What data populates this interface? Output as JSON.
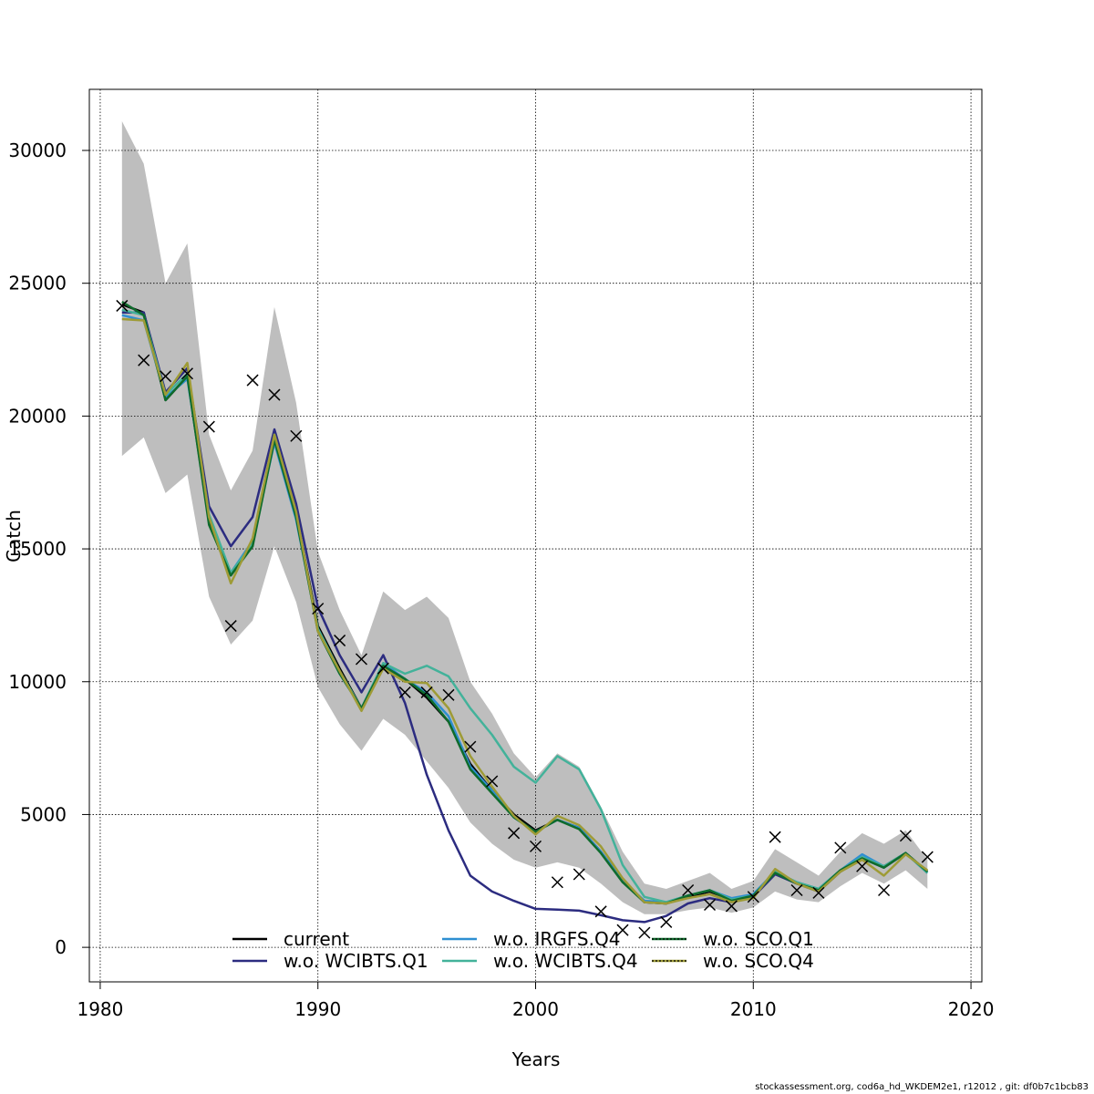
{
  "chart_data": {
    "type": "line",
    "title": "",
    "xlabel": "Years",
    "ylabel": "Catch",
    "xlim": [
      1979.5,
      2020.5
    ],
    "ylim": [
      -1300,
      32300
    ],
    "x_ticks": [
      1980,
      1990,
      2000,
      2010,
      2020
    ],
    "y_ticks": [
      0,
      5000,
      10000,
      15000,
      20000,
      25000,
      30000
    ],
    "grid": true,
    "years": [
      1981,
      1982,
      1983,
      1984,
      1985,
      1986,
      1987,
      1988,
      1989,
      1990,
      1991,
      1992,
      1993,
      1994,
      1995,
      1996,
      1997,
      1998,
      1999,
      2000,
      2001,
      2002,
      2003,
      2004,
      2005,
      2006,
      2007,
      2008,
      2009,
      2010,
      2011,
      2012,
      2013,
      2014,
      2015,
      2016,
      2017,
      2018
    ],
    "ci_band": {
      "color": "#bebebe",
      "upper": [
        31100,
        29500,
        25000,
        26500,
        19300,
        17200,
        18700,
        24100,
        20500,
        14900,
        12700,
        11000,
        13400,
        12700,
        13200,
        12400,
        10000,
        8800,
        7300,
        6400,
        7300,
        6800,
        5300,
        3600,
        2400,
        2200,
        2500,
        2800,
        2200,
        2500,
        3700,
        3200,
        2700,
        3600,
        4300,
        3900,
        4400,
        3300
      ],
      "lower": [
        18500,
        19200,
        17100,
        17800,
        13200,
        11400,
        12300,
        15100,
        13000,
        9800,
        8400,
        7400,
        8600,
        8000,
        7000,
        6000,
        4700,
        3900,
        3300,
        3000,
        3200,
        3000,
        2400,
        1700,
        1250,
        1250,
        1400,
        1500,
        1300,
        1500,
        2100,
        1800,
        1700,
        2300,
        2800,
        2400,
        2900,
        2200
      ]
    },
    "observed": {
      "marker": "x",
      "values": [
        24150,
        22100,
        21500,
        21600,
        19600,
        12100,
        21350,
        20800,
        19250,
        12750,
        11550,
        10850,
        10500,
        9600,
        9600,
        9500,
        7550,
        6250,
        4300,
        3800,
        2450,
        2750,
        1350,
        650,
        550,
        950,
        2150,
        1600,
        1550,
        1900,
        4150,
        2150,
        2050,
        3750,
        3050,
        2150,
        4200,
        3400
      ]
    },
    "legend": {
      "position": "bottom-center",
      "columns": [
        [
          "current",
          "w.o. WCIBTS.Q1"
        ],
        [
          "w.o. IRGFS.Q4",
          "w.o. WCIBTS.Q4"
        ],
        [
          "w.o. SCO.Q1",
          "w.o. SCO.Q4"
        ]
      ]
    },
    "series": [
      {
        "name": "current",
        "color": "#000000",
        "dashed": false,
        "legend_fg": "#000000",
        "values": [
          24200,
          23900,
          20600,
          21500,
          16000,
          14000,
          15200,
          19100,
          16300,
          12100,
          10500,
          9000,
          10600,
          10100,
          9400,
          8500,
          6900,
          5900,
          5000,
          4400,
          4800,
          4500,
          3600,
          2500,
          1700,
          1650,
          1900,
          2100,
          1800,
          1900,
          2800,
          2400,
          2150,
          2850,
          3350,
          3050,
          3550,
          2850
        ]
      },
      {
        "name": "w.o. WCIBTS.Q1",
        "color": "#2c2c80",
        "dashed": false,
        "legend_fg": "#2c2c80",
        "values": [
          23900,
          23900,
          20900,
          21800,
          16600,
          15100,
          16200,
          19500,
          16700,
          12800,
          11000,
          9600,
          11000,
          9200,
          6500,
          4400,
          2700,
          2100,
          1750,
          1450,
          1420,
          1380,
          1210,
          1020,
          950,
          1180,
          1650,
          1850,
          1700,
          1900,
          2750,
          2400,
          2100,
          2850,
          3350,
          3000,
          3550,
          2800
        ]
      },
      {
        "name": "w.o. IRGFS.Q4",
        "color": "#2e8fd1",
        "dashed": true,
        "legend_fg": "#2e8fd1",
        "values": [
          23800,
          23600,
          20700,
          21400,
          16200,
          14100,
          15300,
          19000,
          16100,
          12000,
          10300,
          9000,
          10700,
          10100,
          9600,
          8700,
          6800,
          5900,
          4900,
          4350,
          4800,
          4500,
          3600,
          2500,
          1750,
          1700,
          1950,
          2150,
          1850,
          2000,
          2850,
          2450,
          2200,
          2900,
          3500,
          3050,
          3550,
          2800
        ]
      },
      {
        "name": "w.o. WCIBTS.Q4",
        "color": "#43b29a",
        "dashed": false,
        "legend_fg": "#43b29a",
        "values": [
          24000,
          23800,
          20800,
          21600,
          16300,
          14100,
          15200,
          19300,
          16200,
          12000,
          10400,
          9000,
          10700,
          10300,
          10600,
          10200,
          9000,
          8000,
          6800,
          6200,
          7200,
          6700,
          5200,
          3100,
          1900,
          1700,
          1950,
          2150,
          1800,
          1950,
          2850,
          2450,
          2200,
          2900,
          3400,
          3050,
          3550,
          2800
        ]
      },
      {
        "name": "w.o. SCO.Q1",
        "color": "#0e6b2c",
        "dashed": false,
        "legend_fg": "#000000",
        "values": [
          24300,
          23800,
          20600,
          21500,
          15900,
          14000,
          15100,
          19100,
          16200,
          11900,
          10300,
          9000,
          10600,
          10100,
          9500,
          8500,
          6700,
          5800,
          4900,
          4350,
          4800,
          4450,
          3550,
          2450,
          1700,
          1650,
          1950,
          2150,
          1750,
          1950,
          2800,
          2400,
          2150,
          2900,
          3350,
          3000,
          3550,
          2850
        ]
      },
      {
        "name": "w.o. SCO.Q4",
        "color": "#9e9b36",
        "dashed": false,
        "legend_fg": "#000000",
        "values": [
          23650,
          23600,
          20800,
          22000,
          16200,
          13700,
          15400,
          19300,
          16400,
          11900,
          10400,
          8900,
          10500,
          10000,
          9950,
          9000,
          7200,
          6050,
          4950,
          4250,
          4950,
          4600,
          3800,
          2600,
          1700,
          1650,
          1850,
          2000,
          1700,
          1850,
          2950,
          2400,
          2100,
          2850,
          3300,
          2700,
          3500,
          2900
        ]
      }
    ]
  },
  "footer": "stockassessment.org, cod6a_hd_WKDEM2e1, r12012 , git: df0b7c1bcb83"
}
